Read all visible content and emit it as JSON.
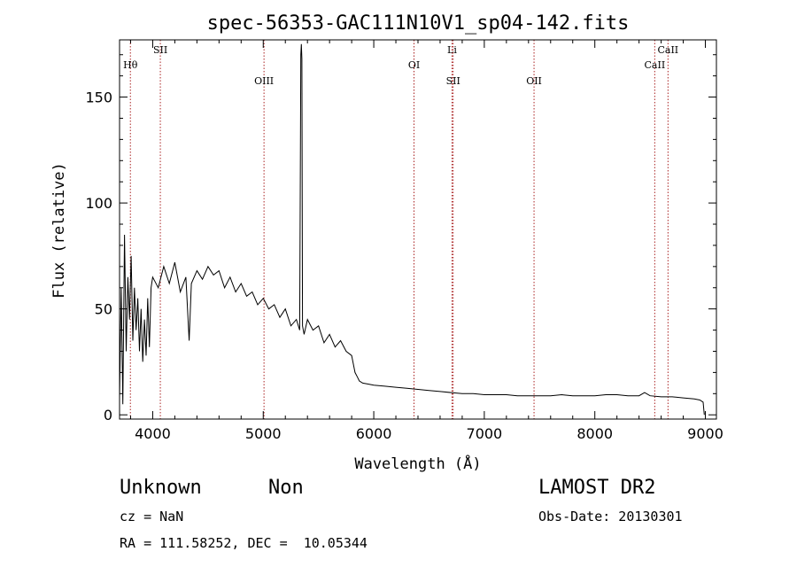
{
  "chart_data": {
    "type": "line",
    "title": "spec-56353-GAC111N10V1_sp04-142.fits",
    "xlabel": "Wavelength (Å)",
    "ylabel": "Flux (relative)",
    "xlim": [
      3700,
      9100
    ],
    "ylim": [
      -2,
      177
    ],
    "x_ticks": [
      4000,
      5000,
      6000,
      7000,
      8000,
      9000
    ],
    "y_ticks": [
      0,
      50,
      100,
      150
    ],
    "grid": false,
    "series": [
      {
        "x": [
          3700,
          3715,
          3730,
          3745,
          3760,
          3775,
          3790,
          3805,
          3820,
          3835,
          3850,
          3865,
          3880,
          3895,
          3910,
          3925,
          3940,
          3955,
          3970,
          3985,
          4000,
          4050,
          4100,
          4150,
          4200,
          4250,
          4300,
          4330,
          4350,
          4400,
          4450,
          4500,
          4550,
          4600,
          4650,
          4700,
          4750,
          4800,
          4850,
          4900,
          4950,
          5000,
          5050,
          5100,
          5150,
          5200,
          5250,
          5300,
          5330,
          5340,
          5345,
          5350,
          5355,
          5370,
          5400,
          5450,
          5500,
          5550,
          5600,
          5650,
          5700,
          5750,
          5800,
          5830,
          5850,
          5870,
          5900,
          5950,
          6000,
          6100,
          6200,
          6300,
          6400,
          6500,
          6600,
          6700,
          6800,
          6900,
          7000,
          7100,
          7200,
          7300,
          7400,
          7500,
          7600,
          7700,
          7800,
          7900,
          8000,
          8100,
          8200,
          8300,
          8400,
          8450,
          8500,
          8600,
          8700,
          8800,
          8900,
          8950,
          8980,
          8990
        ],
        "y": [
          8,
          60,
          5,
          85,
          30,
          65,
          45,
          75,
          35,
          60,
          40,
          55,
          30,
          50,
          25,
          45,
          28,
          55,
          32,
          60,
          65,
          60,
          70,
          62,
          72,
          58,
          65,
          35,
          62,
          68,
          64,
          70,
          66,
          68,
          60,
          65,
          58,
          62,
          56,
          58,
          52,
          55,
          50,
          52,
          46,
          50,
          42,
          45,
          40,
          170,
          175,
          168,
          42,
          38,
          45,
          40,
          42,
          34,
          38,
          32,
          35,
          30,
          28,
          20,
          18,
          16,
          15,
          14.5,
          14,
          13.5,
          13,
          12.5,
          12,
          11.5,
          11,
          10.5,
          10,
          10,
          9.5,
          9.5,
          9.5,
          9,
          9,
          9,
          9,
          9.5,
          9,
          9,
          9,
          9.5,
          9.5,
          9,
          9,
          10.5,
          9,
          8.5,
          8.5,
          8,
          7.5,
          7,
          6,
          0
        ]
      }
    ],
    "line_markers": [
      {
        "label": "Hθ",
        "wavelength": 3798,
        "row": 2
      },
      {
        "label": "SII",
        "wavelength": 4069,
        "row": 1
      },
      {
        "label": "OIII",
        "wavelength": 5007,
        "row": 3
      },
      {
        "label": "OI",
        "wavelength": 6364,
        "row": 2
      },
      {
        "label": "Li",
        "wavelength": 6708,
        "row": 1
      },
      {
        "label": "SII",
        "wavelength": 6718,
        "row": 3
      },
      {
        "label": "OII",
        "wavelength": 7450,
        "row": 3
      },
      {
        "label": "CaII",
        "wavelength": 8542,
        "row": 2
      },
      {
        "label": "CaII",
        "wavelength": 8662,
        "row": 1
      }
    ],
    "colors": {
      "spectrum": "#000000",
      "markers": "#aa2222"
    }
  },
  "info": {
    "classification": "Unknown",
    "subclass": "Non",
    "survey": "LAMOST DR2",
    "cz": "cz = NaN",
    "obs_date": "Obs-Date: 20130301",
    "coords": "RA = 111.58252, DEC =  10.05344"
  }
}
